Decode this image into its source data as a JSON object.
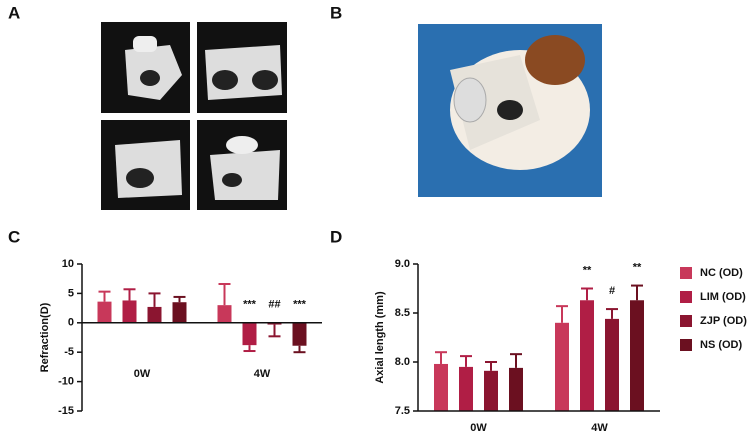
{
  "panels": [
    "A",
    "B",
    "C",
    "D"
  ],
  "chart_data": [
    {
      "type": "bar",
      "y_label": "Refraction(D)",
      "categories": [
        "0W",
        "4W"
      ],
      "ylim": [
        -15,
        10
      ],
      "yticks": [
        -15,
        -10,
        -5,
        0,
        5,
        10
      ],
      "series": [
        {
          "color": "#c8385a",
          "values": [
            3.6,
            3.0
          ],
          "errors": [
            1.7,
            3.6
          ],
          "sig": [
            null,
            null
          ]
        },
        {
          "color": "#b01e45",
          "values": [
            3.8,
            -3.8
          ],
          "errors": [
            1.9,
            1.0
          ],
          "sig": [
            null,
            "***"
          ]
        },
        {
          "color": "#8b1530",
          "values": [
            2.7,
            -0.3
          ],
          "errors": [
            2.3,
            2.0
          ],
          "sig": [
            null,
            "##"
          ]
        },
        {
          "color": "#6b1020",
          "values": [
            3.5,
            -3.9
          ],
          "errors": [
            0.9,
            1.1
          ],
          "sig": [
            null,
            "***"
          ]
        }
      ]
    },
    {
      "type": "bar",
      "y_label": "Axial length (mm)",
      "categories": [
        "0W",
        "4W"
      ],
      "ylim": [
        7.5,
        9.0
      ],
      "yticks": [
        7.5,
        {
          "value": 8,
          "label": "8.0"
        },
        8.5,
        {
          "value": 9,
          "label": "9.0"
        }
      ],
      "series": [
        {
          "name": "NC (OD)",
          "color": "#c8385a",
          "values": [
            7.98,
            8.4
          ],
          "errors": [
            0.12,
            0.17
          ],
          "sig": [
            null,
            null
          ]
        },
        {
          "name": "LIM (OD)",
          "color": "#b01e45",
          "values": [
            7.95,
            8.63
          ],
          "errors": [
            0.11,
            0.12
          ],
          "sig": [
            null,
            "**"
          ]
        },
        {
          "name": "ZJP (OD)",
          "color": "#8b1530",
          "values": [
            7.91,
            8.44
          ],
          "errors": [
            0.09,
            0.1
          ],
          "sig": [
            null,
            "#"
          ]
        },
        {
          "name": "NS (OD)",
          "color": "#6b1020",
          "values": [
            7.94,
            8.63
          ],
          "errors": [
            0.14,
            0.15
          ],
          "sig": [
            null,
            "**"
          ]
        }
      ]
    }
  ]
}
